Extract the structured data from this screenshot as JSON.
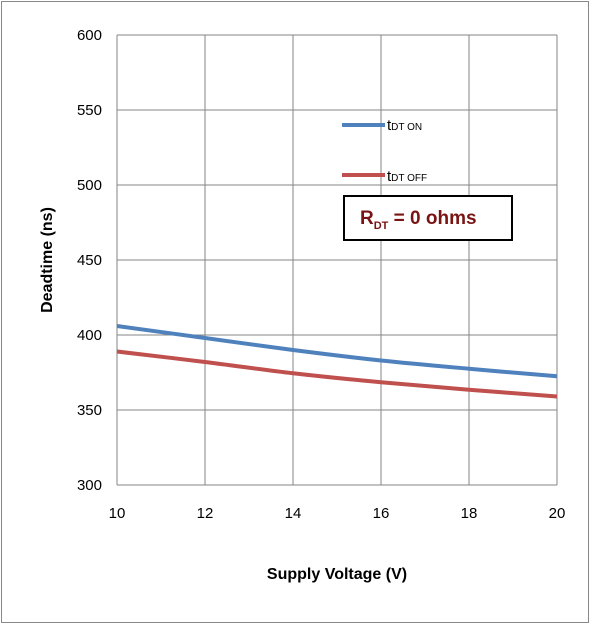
{
  "chart_data": {
    "type": "line",
    "xlabel": "Supply Voltage (V)",
    "ylabel": "Deadtime (ns)",
    "xlim": [
      10,
      20
    ],
    "ylim": [
      300,
      600
    ],
    "x_ticks": [
      "10",
      "12",
      "14",
      "16",
      "18",
      "20"
    ],
    "y_ticks": [
      "300",
      "350",
      "400",
      "450",
      "500",
      "550",
      "600"
    ],
    "grid": true,
    "legend_position": "upper-right",
    "series": [
      {
        "name": "tDT ON",
        "label_main": "t",
        "label_sub": "DT ON",
        "color": "#4f81bd",
        "x": [
          10,
          12,
          14,
          16,
          18,
          20
        ],
        "y": [
          406,
          398,
          390,
          383,
          377.5,
          372.5
        ]
      },
      {
        "name": "tDT OFF",
        "label_main": "t",
        "label_sub": "DT OFF",
        "color": "#c0504d",
        "x": [
          10,
          12,
          14,
          16,
          18,
          20
        ],
        "y": [
          389,
          382,
          374.5,
          368.5,
          363.5,
          359
        ]
      }
    ],
    "annotation": {
      "main": "R",
      "sub": "DT",
      "rest": " = 0 ohms",
      "color": "#7a1414"
    }
  }
}
